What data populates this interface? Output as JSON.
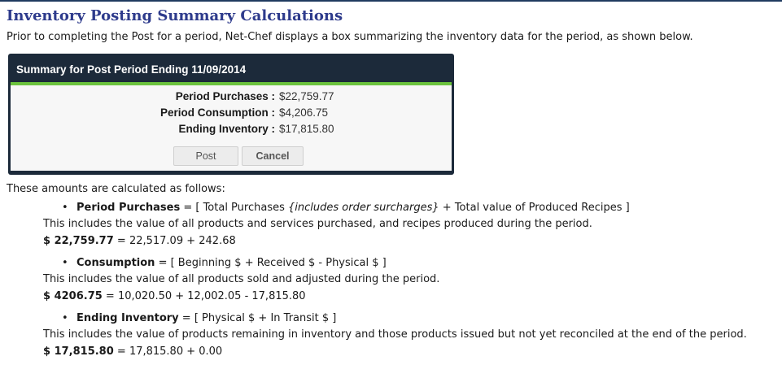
{
  "page": {
    "title": "Inventory Posting Summary Calculations",
    "intro": "Prior to completing the Post for a period, Net-Chef displays a box summarizing the inventory data for the period, as shown below."
  },
  "dialog": {
    "title": "Summary for Post Period Ending 11/09/2014",
    "rows": [
      {
        "label": "Period Purchases :",
        "value": "$22,759.77"
      },
      {
        "label": "Period Consumption :",
        "value": "$4,206.75"
      },
      {
        "label": "Ending Inventory :",
        "value": "$17,815.80"
      }
    ],
    "post_label": "Post",
    "cancel_label": "Cancel",
    "accent_color": "#6cc33d",
    "frame_color": "#1c2a3a"
  },
  "explanation": {
    "lead": "These amounts are calculated as follows:",
    "sections": [
      {
        "term": "Period Purchases",
        "formula_prefix": " = [ Total Purchases ",
        "formula_italic": "{includes order surcharges}",
        "formula_suffix": " + Total value of Produced Recipes ]",
        "description": "This includes the value of all products and services purchased, and recipes produced during the period.",
        "result_bold": "$ 22,759.77",
        "result_rest": " = 22,517.09 + 242.68"
      },
      {
        "term": "Consumption",
        "formula_prefix": " = [ Beginning $ + Received $ - Physical $ ]",
        "formula_italic": "",
        "formula_suffix": "",
        "description": "This includes the value of all products sold and adjusted during the period.",
        "result_bold": "$ 4206.75",
        "result_rest": " = 10,020.50 + 12,002.05 - 17,815.80"
      },
      {
        "term": "Ending Inventory",
        "formula_prefix": " = [ Physical $ + In Transit $ ]",
        "formula_italic": "",
        "formula_suffix": "",
        "description": "This includes the value of products remaining in inventory and those products issued but not yet reconciled at the end of the period.",
        "result_bold": "$ 17,815.80",
        "result_rest": " = 17,815.80 + 0.00"
      }
    ]
  }
}
